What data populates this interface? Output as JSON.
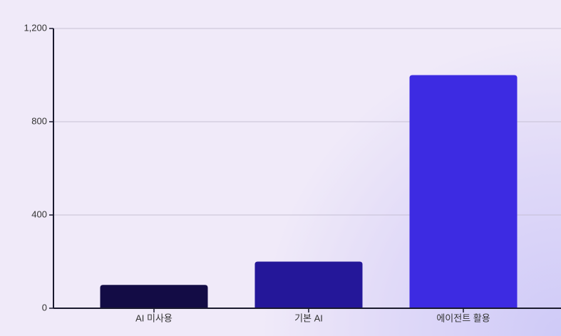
{
  "chart_data": {
    "type": "bar",
    "categories": [
      "AI 미사용",
      "기본 AI",
      "에이전트 활용"
    ],
    "values": [
      100,
      200,
      1000
    ],
    "colors": [
      "#130c45",
      "#241799",
      "#3d2be2"
    ],
    "ylim": [
      0,
      1200
    ],
    "yticks": [
      0,
      400,
      800,
      {
        "value": 1200,
        "label": "1,200"
      }
    ],
    "grid": true
  }
}
